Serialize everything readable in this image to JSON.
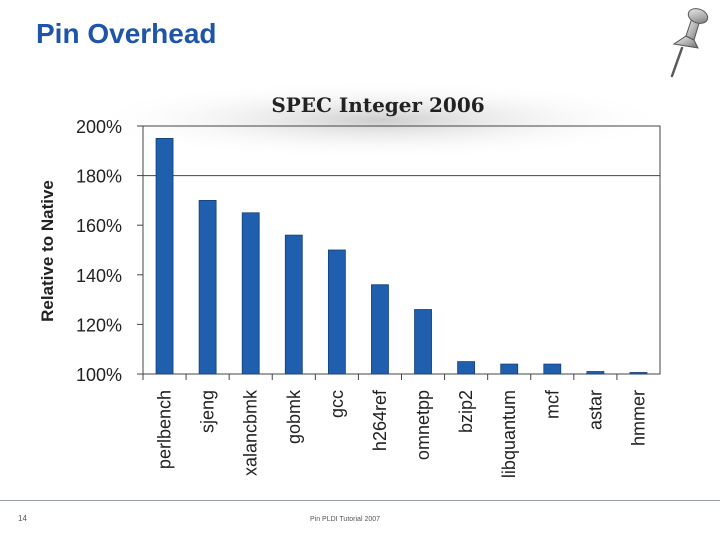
{
  "slide": {
    "title": "Pin Overhead",
    "number": "14",
    "footer": "Pin PLDI Tutorial 2007"
  },
  "colors": {
    "title": "#1f55a8",
    "bar": "#1f5fae",
    "bar_dark": "#143f78"
  },
  "chart_data": {
    "type": "bar",
    "title": "SPEC Integer 2006",
    "ylabel": "Relative to Native",
    "xlabel": "",
    "ylim": [
      100,
      200
    ],
    "yticks": [
      100,
      120,
      140,
      160,
      180,
      200
    ],
    "ytick_labels": [
      "100%",
      "120%",
      "140%",
      "160%",
      "180%",
      "200%"
    ],
    "grid_y": [
      180
    ],
    "categories": [
      "perlbench",
      "sjeng",
      "xalancbmk",
      "gobmk",
      "gcc",
      "h264ref",
      "omnetpp",
      "bzip2",
      "libquantum",
      "mcf",
      "astar",
      "hmmer"
    ],
    "values": [
      195,
      170,
      165,
      156,
      150,
      136,
      126,
      105,
      104,
      104,
      101,
      100.5
    ]
  }
}
